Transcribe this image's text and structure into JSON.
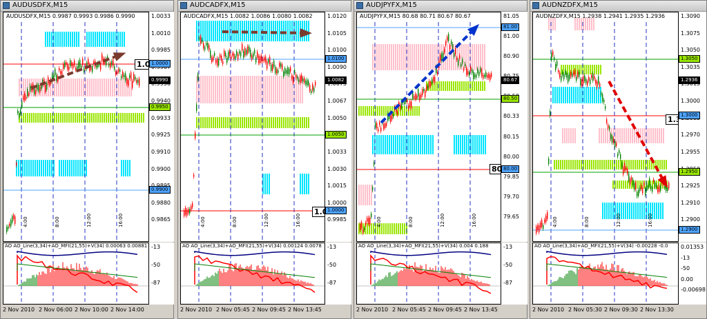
{
  "windows": [
    {
      "title": "AUDUSDFX,M15",
      "symbol_line": "AUDUSDFX,M15  0.9987 0.9993 0.9986 0.9990",
      "price_labels": [
        "1.0033",
        "1.0010",
        "0.9985",
        "0.9967",
        "0.9950",
        "0.9940",
        "0.9933",
        "0.9925",
        "0.9910",
        "0.9900",
        "0.9895",
        "0.9880",
        "0.9865"
      ],
      "current_price": "0.9990",
      "level_tags": [
        {
          "text": "1.0000",
          "color": "#4da3ff"
        },
        {
          "text": "0.9950",
          "color": "#99e600"
        },
        {
          "text": "0.9900",
          "color": "#4da3ff"
        }
      ],
      "cue_label": "1.0",
      "indicator_label": "AO  AO_Line(3,34)+AO_MFI(21,55)+V(34) 0.00063 0.00881",
      "indicator_scale": [
        "-13",
        "-50",
        "-87"
      ],
      "time_labels": [
        "2 Nov 2010",
        "2 Nov 06:00",
        "2 Nov 10:00",
        "2 Nov 14:00"
      ],
      "hour_labels": [
        "4:00",
        "8:00",
        "12:00",
        "16:00"
      ]
    },
    {
      "title": "AUDCADFX,M15",
      "symbol_line": "AUDCADFX,M15  1.0082 1.0086 1.0080 1.0082",
      "price_labels": [
        "1.0120",
        "1.0105",
        "1.0100",
        "1.0090",
        "1.0075",
        "1.0067",
        "1.0050",
        "1.0045",
        "1.0033",
        "1.0030",
        "1.0015",
        "1.0000",
        "0.9985"
      ],
      "current_price": "1.0082",
      "level_tags": [
        {
          "text": "1.0100",
          "color": "#4da3ff"
        },
        {
          "text": "1.0050",
          "color": "#99e600"
        },
        {
          "text": "1.0000",
          "color": "#4da3ff"
        }
      ],
      "cue_label": "1.0",
      "indicator_label": "AO  AO_Line(3,34)+AO_MFI(21,55)+V(34) 0.00124 0.0078",
      "indicator_scale": [
        "-13",
        "-50",
        "-87"
      ],
      "time_labels": [
        "2 Nov 2010",
        "2 Nov 05:45",
        "2 Nov 09:45",
        "2 Nov 13:45"
      ],
      "hour_labels": [
        "4:00",
        "8:00",
        "12:00",
        "16:00"
      ]
    },
    {
      "title": "AUDJPYFX,M15",
      "symbol_line": "AUDJPYFX,M15  80.68 80.71 80.67 80.67",
      "price_labels": [
        "81.05",
        "81.00",
        "80.90",
        "80.75",
        "80.50",
        "80.33",
        "80.15",
        "80.00",
        "79.85",
        "79.70",
        "79.65"
      ],
      "current_price": "80.67",
      "level_tags": [
        {
          "text": "81.00",
          "color": "#4da3ff"
        },
        {
          "text": "80.50",
          "color": "#99e600"
        },
        {
          "text": "80.00",
          "color": "#4da3ff"
        }
      ],
      "cue_label": "80.",
      "indicator_label": "AO  AO_Line(3,34)+AO_MFI(21,55)+V(34) 0.004 0.188",
      "indicator_scale": [
        "-13",
        "-50",
        "-87"
      ],
      "time_labels": [
        "2 Nov 2010",
        "2 Nov 05:45",
        "2 Nov 09:45",
        "2 Nov 13:45"
      ],
      "hour_labels": [
        "4:00",
        "8:00",
        "12:00",
        "16:00"
      ]
    },
    {
      "title": "AUDNZDFX,M15",
      "symbol_line": "AUDNZDFX,M15  1.2938 1.2941 1.2935 1.2936",
      "price_labels": [
        "1.3090",
        "1.3075",
        "1.3050",
        "1.3035",
        "1.3015",
        "1.3000",
        "1.2985",
        "1.2970",
        "1.2955",
        "1.2950",
        "1.2925",
        "1.2910",
        "1.2900"
      ],
      "current_price": "1.2936",
      "level_tags": [
        {
          "text": "1.3050",
          "color": "#99e600"
        },
        {
          "text": "1.3000",
          "color": "#4da3ff"
        },
        {
          "text": "1.2950",
          "color": "#99e600"
        },
        {
          "text": "1.2900",
          "color": "#4da3ff"
        }
      ],
      "cue_label": "1.30",
      "indicator_label": "AO  AO_Line(3,34)+AO_MFI(21,55)+V(34) -0.00228 -0.0",
      "indicator_scale": [
        "0.01353",
        "-13",
        "-50",
        "0.00",
        "-0.00698"
      ],
      "time_labels": [
        "2 Nov 2010",
        "2 Nov 05:30",
        "2 Nov 09:30",
        "2 Nov 13:30"
      ],
      "hour_labels": [
        "4:00",
        "8:00",
        "12:00",
        "16:00"
      ]
    }
  ],
  "colors": {
    "bull": "#008000",
    "bear": "#ff0000",
    "cyan_zone": "#00e5ff",
    "pink_zone": "#ffc0cb",
    "green_zone": "#99e600",
    "arrow_brown": "#7a3b2e",
    "arrow_blue": "#0033cc",
    "arrow_red": "#e00000"
  }
}
